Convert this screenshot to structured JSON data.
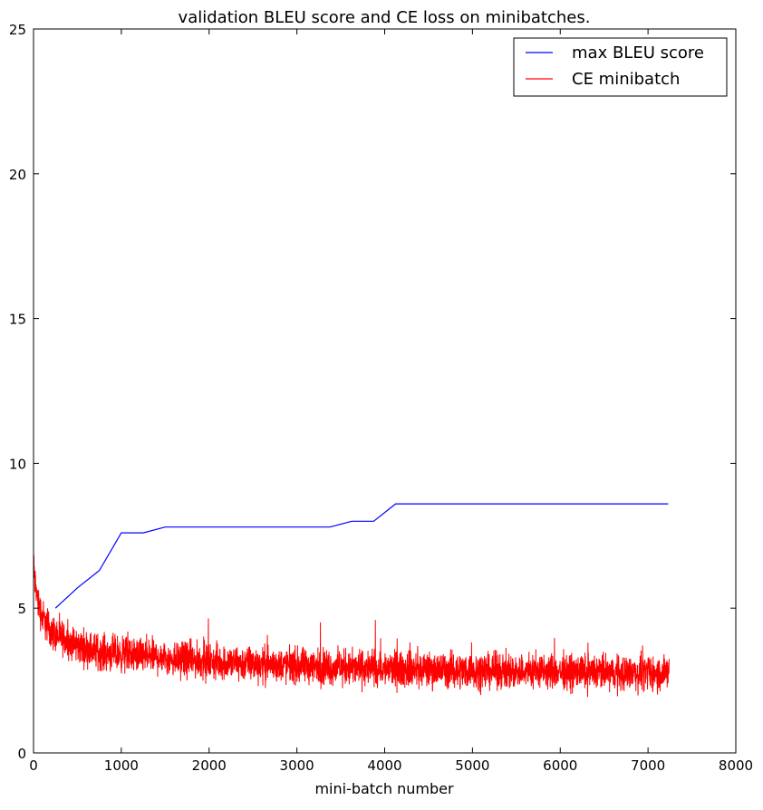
{
  "chart_data": {
    "type": "line",
    "title": "validation BLEU score and CE loss on minibatches.",
    "xlabel": "mini-batch number",
    "ylabel": "",
    "xlim": [
      0,
      8000
    ],
    "ylim": [
      0,
      25
    ],
    "xticks": [
      0,
      1000,
      2000,
      3000,
      4000,
      5000,
      6000,
      7000,
      8000
    ],
    "yticks": [
      0,
      5,
      10,
      15,
      20,
      25
    ],
    "grid": false,
    "legend": {
      "position": "top-right"
    },
    "series": [
      {
        "name": "max BLEU score",
        "color": "#0000ff",
        "x": [
          250,
          500,
          750,
          1000,
          1250,
          1500,
          1750,
          2000,
          2250,
          2500,
          2750,
          3000,
          3250,
          3375,
          3625,
          3875,
          4125,
          4375,
          4625,
          4875,
          5125,
          5375,
          5625,
          5875,
          6125,
          6375,
          6625,
          6875,
          7125,
          7230
        ],
        "y": [
          5.0,
          5.7,
          6.3,
          7.6,
          7.6,
          7.8,
          7.8,
          7.8,
          7.8,
          7.8,
          7.8,
          7.8,
          7.8,
          7.8,
          8.0,
          8.0,
          8.6,
          8.6,
          8.6,
          8.6,
          8.6,
          8.6,
          8.6,
          8.6,
          8.6,
          8.6,
          8.6,
          8.6,
          8.6,
          8.6
        ]
      },
      {
        "name": "CE minibatch",
        "color": "#ff0000",
        "style": "noisy minibatch cross-entropy loss",
        "trend_x": [
          0,
          20,
          50,
          100,
          200,
          300,
          500,
          750,
          1000,
          1500,
          2000,
          3000,
          4000,
          5000,
          6000,
          7000,
          7240
        ],
        "trend_y": [
          6.5,
          5.8,
          5.2,
          4.7,
          4.2,
          4.0,
          3.7,
          3.5,
          3.4,
          3.3,
          3.15,
          3.0,
          2.9,
          2.85,
          2.8,
          2.75,
          2.75
        ],
        "noise_amplitude": 0.55,
        "min": 1.6,
        "max": 6.9
      }
    ]
  }
}
